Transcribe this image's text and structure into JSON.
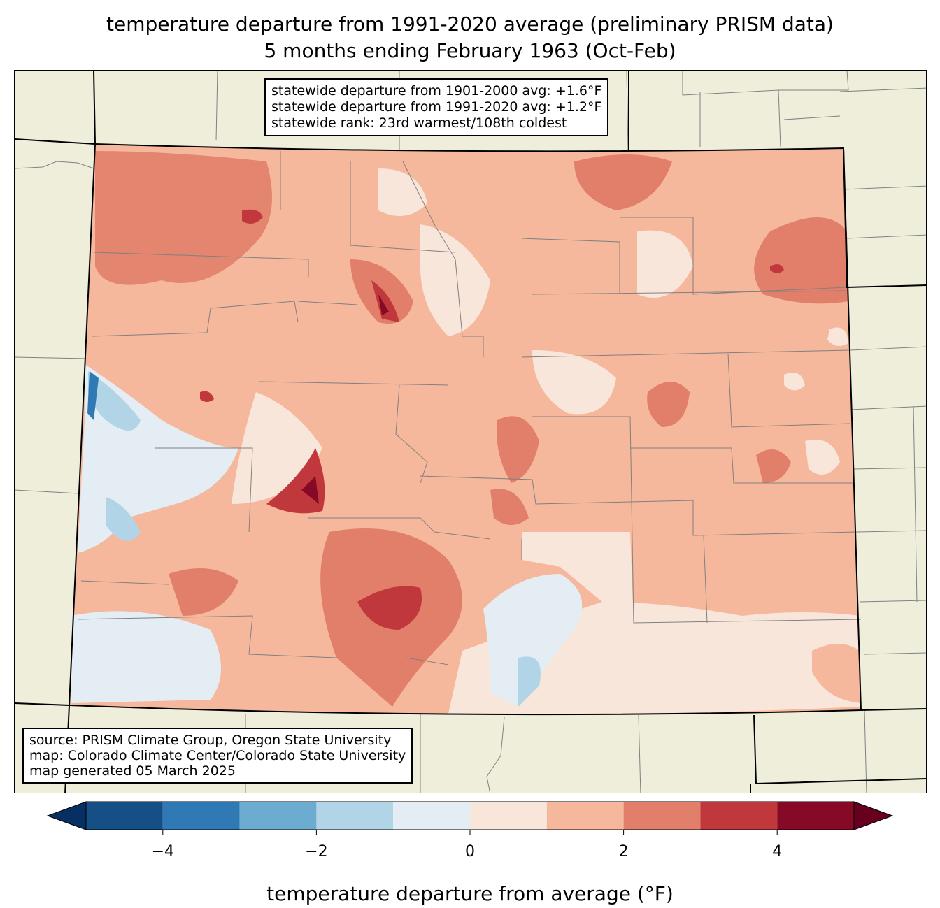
{
  "title": {
    "line1": "temperature departure from 1991-2020 average (preliminary PRISM data)",
    "line2": "5 months ending February 1963 (Oct-Feb)"
  },
  "stats_box": [
    "statewide departure from 1901-2000 avg: +1.6°F",
    "statewide departure from 1991-2020 avg: +1.2°F",
    "statewide rank: 23rd warmest/108th coldest"
  ],
  "source_box": [
    "source: PRISM Climate Group, Oregon State University",
    "map: Colorado Climate Center/Colorado State University",
    "map generated 05 March 2025"
  ],
  "colorbar": {
    "label": "temperature departure from average (°F)",
    "bounds": [
      -5,
      -4,
      -3,
      -2,
      -1,
      0,
      1,
      2,
      3,
      4,
      5
    ],
    "colors": [
      "#164f86",
      "#2f79b5",
      "#6bacd0",
      "#b1d5e7",
      "#e3edf3",
      "#f9e6db",
      "#f6b89c",
      "#e17f6a",
      "#c0383c",
      "#860a26"
    ],
    "under_color": "#053061",
    "over_color": "#67001f",
    "ticks": [
      {
        "value": -4,
        "label": "−4"
      },
      {
        "value": -2,
        "label": "−2"
      },
      {
        "value": 0,
        "label": "0"
      },
      {
        "value": 2,
        "label": "2"
      },
      {
        "value": 4,
        "label": "4"
      }
    ]
  },
  "colors": {
    "land": "#efeedb",
    "county_line": "#808080",
    "state_line": "#000000"
  }
}
